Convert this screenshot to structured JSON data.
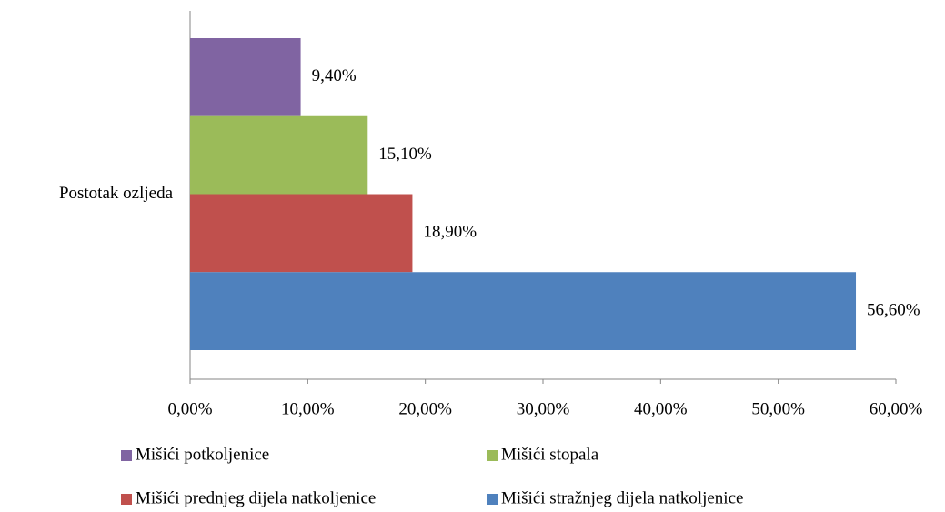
{
  "chart_data": {
    "type": "bar",
    "orientation": "horizontal",
    "categories": [
      "Postotak ozljeda"
    ],
    "series": [
      {
        "name": "Mišići potkoljenice",
        "color": "#8064a2",
        "values": [
          9.4
        ],
        "value_labels": [
          "9,40%"
        ]
      },
      {
        "name": "Mišići stopala",
        "color": "#9bbb59",
        "values": [
          15.1
        ],
        "value_labels": [
          "15,10%"
        ]
      },
      {
        "name": "Mišići prednjeg dijela natkoljenice",
        "color": "#c0504d",
        "values": [
          18.9
        ],
        "value_labels": [
          "18,90%"
        ]
      },
      {
        "name": "Mišići stražnjeg dijela natkoljenice",
        "color": "#4f81bd",
        "values": [
          56.6
        ],
        "value_labels": [
          "56,60%"
        ]
      }
    ],
    "xlim": [
      0,
      60
    ],
    "xticks": [
      {
        "value": 0,
        "label": "0,00%"
      },
      {
        "value": 10,
        "label": "10,00%"
      },
      {
        "value": 20,
        "label": "20,00%"
      },
      {
        "value": 30,
        "label": "30,00%"
      },
      {
        "value": 40,
        "label": "40,00%"
      },
      {
        "value": 50,
        "label": "50,00%"
      },
      {
        "value": 60,
        "label": "60,00%"
      }
    ],
    "legend": "bottom"
  }
}
